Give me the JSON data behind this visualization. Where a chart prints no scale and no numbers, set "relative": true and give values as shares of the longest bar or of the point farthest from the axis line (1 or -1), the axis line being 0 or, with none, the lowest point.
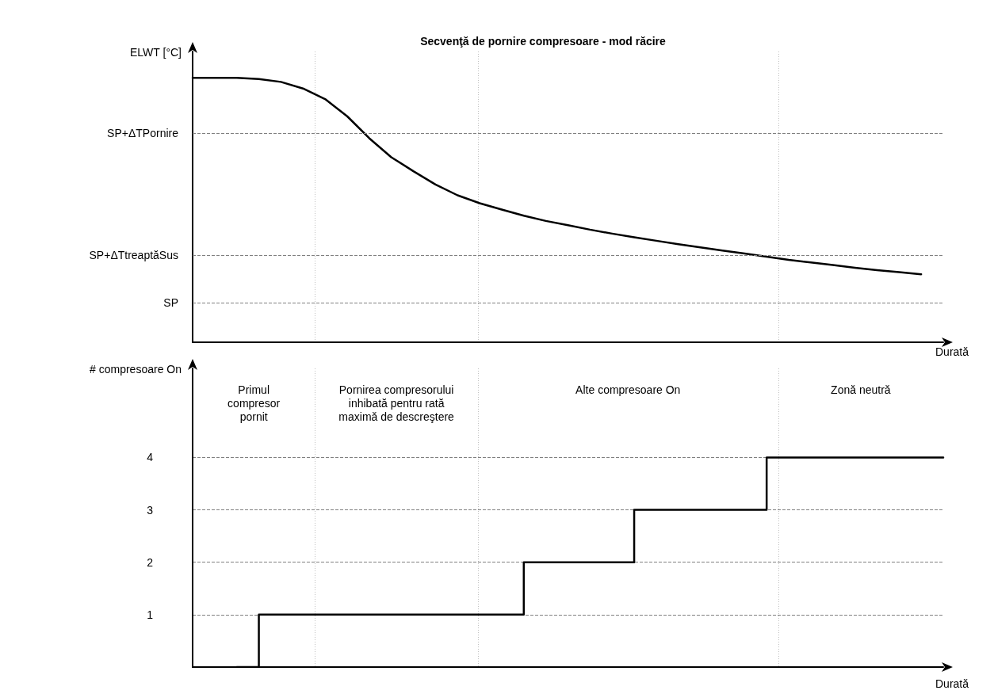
{
  "chart_data": [
    {
      "type": "line",
      "title": "Secvenţă de pornire compresoare - mod răcire",
      "ylabel": "ELWT [°C]",
      "xlabel": "Durată",
      "relative": true,
      "tick_labels": false,
      "marker": "none",
      "line_style": "solid",
      "grid": false,
      "categories": [
        null,
        null,
        null,
        null,
        null,
        null,
        null,
        null,
        null,
        null,
        null,
        null,
        null,
        null,
        null,
        null,
        null,
        null,
        null,
        null,
        null,
        null,
        null,
        null,
        null,
        null,
        null,
        null,
        null,
        null,
        null,
        null,
        null,
        null,
        null
      ],
      "series": [
        {
          "color": "#000000",
          "values": [
            1,
            1,
            1,
            0.996,
            0.985,
            0.96,
            0.92,
            0.855,
            0.772,
            0.7,
            0.647,
            0.597,
            0.556,
            0.526,
            0.502,
            0.479,
            0.459,
            0.443,
            0.426,
            0.411,
            0.397,
            0.384,
            0.371,
            0.359,
            0.347,
            0.336,
            0.324,
            0.312,
            0.302,
            0.292,
            0.282,
            0.273,
            0.265,
            0.257,
            null
          ]
        }
      ],
      "ref_lines": [
        {
          "axis": "y",
          "value": 0.791,
          "label": "SP+ΔTPornire",
          "color": "#808080",
          "line_style": "dashed"
        },
        {
          "axis": "y",
          "value": 0.328,
          "label": "SP+ΔTtreaptăSus",
          "color": "#808080",
          "line_style": "dashed"
        },
        {
          "axis": "y",
          "value": 0.152,
          "label": "SP",
          "color": "#808080",
          "line_style": "dashed"
        }
      ]
    },
    {
      "type": "step",
      "ylabel": "# compresoare On",
      "xlabel": "Durată",
      "ylim": [
        0,
        5.7
      ],
      "yticks": [
        1,
        2,
        3,
        4
      ],
      "tick_labels": "y",
      "marker": "none",
      "line_style": "solid",
      "grid": "y",
      "categories": [
        null,
        null,
        null,
        null,
        null,
        null,
        null,
        null,
        null,
        null,
        null,
        null,
        null,
        null,
        null,
        null,
        null,
        null,
        null,
        null,
        null,
        null,
        null,
        null,
        null,
        null,
        null,
        null,
        null,
        null,
        null,
        null,
        null,
        null,
        null
      ],
      "series": [
        {
          "color": "#000000",
          "values": [
            null,
            null,
            0,
            1,
            1,
            1,
            1,
            1,
            1,
            1,
            1,
            1,
            1,
            1,
            1,
            2,
            2,
            2,
            2,
            2,
            3,
            3,
            3,
            3,
            3,
            3,
            4,
            4,
            4,
            4,
            4,
            4,
            4,
            4,
            4
          ]
        }
      ],
      "annotations": [
        "Primul\ncompresor\npornit",
        "Pornirea compresorului\ninhibată pentru rată\nmaximă de descreştere",
        "Alte compresoare On",
        "Zonă neutră"
      ]
    }
  ]
}
